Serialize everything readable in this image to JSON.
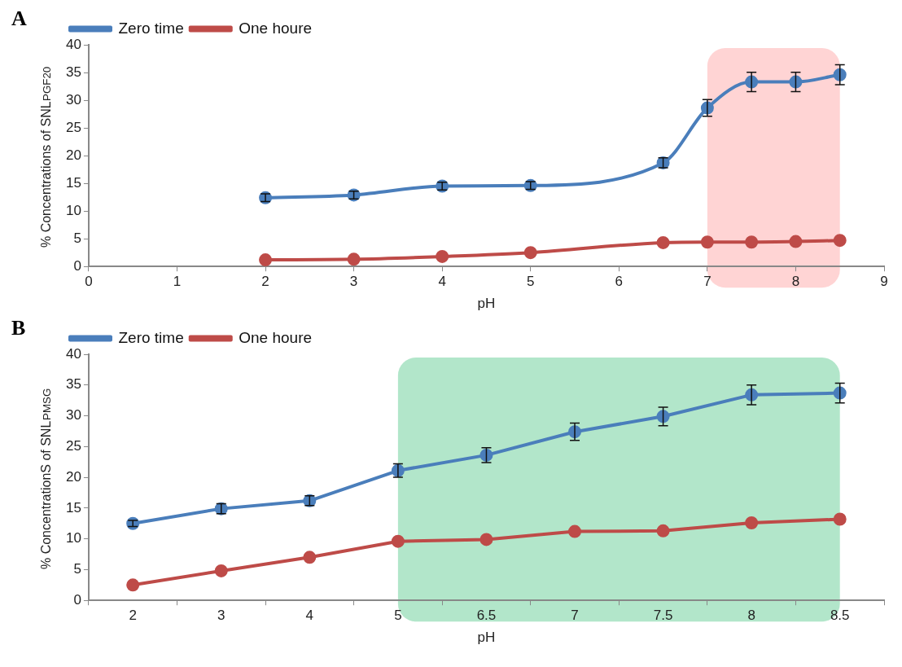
{
  "chart_data": [
    {
      "type": "line",
      "title": "A",
      "xlabel": "pH",
      "ylabel": "% Concentrations of SNL$_{PGF20}$",
      "x": [
        2,
        3,
        4,
        5,
        6.5,
        7,
        7.5,
        8,
        8.5
      ],
      "xlim": [
        0,
        9
      ],
      "xticks": [
        0,
        1,
        2,
        3,
        4,
        5,
        6,
        7,
        8,
        9
      ],
      "ylim": [
        0,
        40
      ],
      "yticks": [
        0,
        5,
        10,
        15,
        20,
        25,
        30,
        35,
        40
      ],
      "grid": false,
      "legend": "top left",
      "marker": "circle",
      "series": [
        {
          "name": "Zero time",
          "color": "#4a7ebb",
          "values": [
            12.4,
            12.9,
            14.5,
            14.6,
            18.7,
            28.6,
            33.3,
            33.3,
            34.6
          ],
          "errors": [
            0.7,
            0.7,
            0.7,
            0.7,
            0.9,
            1.5,
            1.75,
            1.75,
            1.8
          ]
        },
        {
          "name": "One houre",
          "color": "#be4b48",
          "values": [
            1.2,
            1.3,
            1.8,
            2.5,
            4.3,
            4.4,
            4.4,
            4.5,
            4.7
          ]
        }
      ],
      "bands": [
        {
          "axis": "x",
          "from": 7,
          "to": 8.5,
          "color": "#ffc9c9"
        }
      ]
    },
    {
      "type": "line",
      "title": "B",
      "xlabel": "pH",
      "ylabel": "% ConcentrationS of SNL$_{PMSG}$",
      "categories": [
        "2",
        "3",
        "4",
        "5",
        "6.5",
        "7",
        "7.5",
        "8",
        "8.5"
      ],
      "ylim": [
        0,
        40
      ],
      "yticks": [
        0,
        5,
        10,
        15,
        20,
        25,
        30,
        35,
        40
      ],
      "grid": false,
      "legend": "top left",
      "marker": "circle",
      "series": [
        {
          "name": "Zero time",
          "color": "#4a7ebb",
          "values": [
            12.5,
            14.9,
            16.2,
            21.1,
            23.6,
            27.4,
            29.9,
            33.4,
            33.7
          ],
          "errors": [
            0.5,
            0.8,
            0.8,
            1.1,
            1.2,
            1.4,
            1.5,
            1.6,
            1.6
          ]
        },
        {
          "name": "One houre",
          "color": "#be4b48",
          "values": [
            2.5,
            4.8,
            7.0,
            9.6,
            9.9,
            11.2,
            11.3,
            12.6,
            13.2
          ]
        }
      ],
      "bands": [
        {
          "axis": "x",
          "from": "5",
          "to": "8.5",
          "color": "#9fe0bd"
        }
      ]
    }
  ]
}
